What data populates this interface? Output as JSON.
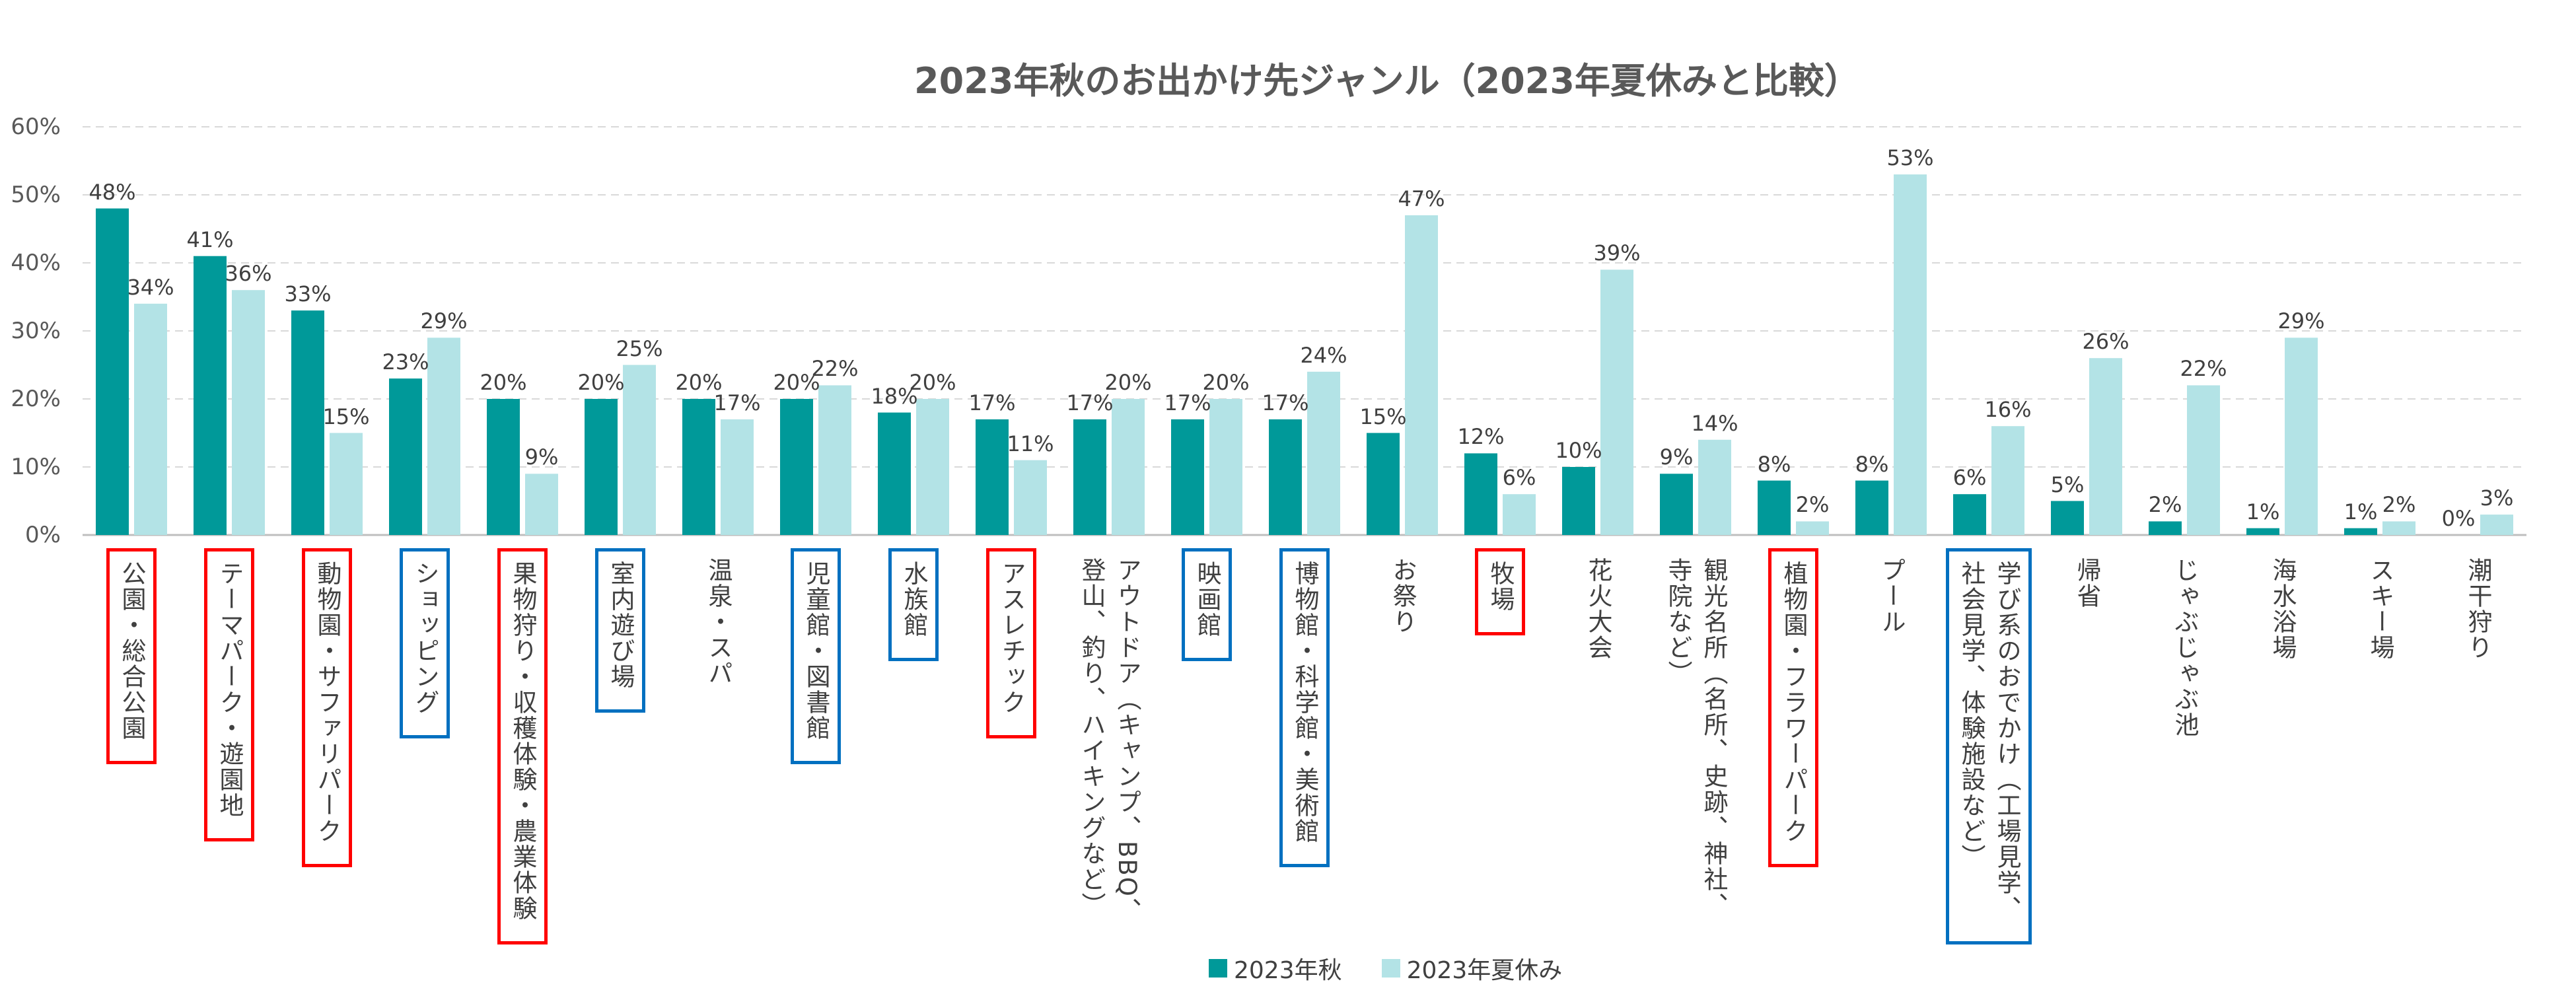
{
  "chart_data": {
    "type": "bar",
    "title": "2023年秋のお出かけ先ジャンル（2023年夏休みと比較）",
    "xlabel": "",
    "ylabel": "",
    "ylim": [
      0,
      60
    ],
    "yticks": [
      "0%",
      "10%",
      "20%",
      "30%",
      "40%",
      "50%",
      "60%"
    ],
    "grid": true,
    "legend_position": "bottom",
    "categories": [
      "公園・総合公園",
      "テーマパーク・遊園地",
      "動物園・サファリパーク",
      "ショッピング",
      "果物狩り・収穫体験・農業体験",
      "室内遊び場",
      "温泉・スパ",
      "児童館・図書館",
      "水族館",
      "アスレチック",
      "アウトドア（キャンプ、BBQ、登山、釣り、ハイキングなど）",
      "映画館",
      "博物館・科学館・美術館",
      "お祭り",
      "牧場",
      "花火大会",
      "観光名所（名所、史跡、神社、寺院など）",
      "植物園・フラワーパーク",
      "プール",
      "学び系のおでかけ（工場見学、社会見学、体験施設など）",
      "帰省",
      "じゃぶじゃぶ池",
      "海水浴場",
      "スキー場",
      "潮干狩り"
    ],
    "category_highlight": [
      "red",
      "red",
      "red",
      "blue",
      "red",
      "blue",
      "",
      "blue",
      "blue",
      "red",
      "",
      "blue",
      "blue",
      "",
      "red",
      "",
      "",
      "red",
      "",
      "blue",
      "",
      "",
      "",
      "",
      ""
    ],
    "highlight_colors": {
      "red": "#ff0000",
      "blue": "#0070c0"
    },
    "series": [
      {
        "name": "2023年秋",
        "color": "#009999",
        "values": [
          48,
          41,
          33,
          23,
          20,
          20,
          20,
          20,
          18,
          17,
          17,
          17,
          17,
          15,
          12,
          10,
          9,
          8,
          8,
          6,
          5,
          2,
          1,
          1,
          0
        ]
      },
      {
        "name": "2023年夏休み",
        "color": "#b3e3e6",
        "values": [
          34,
          36,
          15,
          29,
          9,
          25,
          17,
          22,
          20,
          11,
          20,
          20,
          24,
          47,
          6,
          39,
          14,
          2,
          53,
          16,
          26,
          22,
          29,
          2,
          3
        ]
      }
    ]
  }
}
